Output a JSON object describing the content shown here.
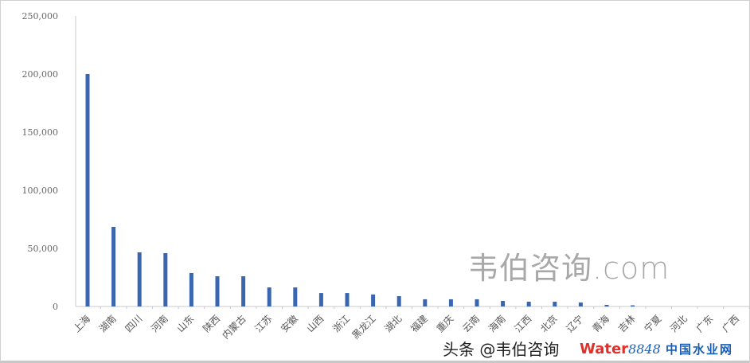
{
  "chart_data": {
    "type": "bar",
    "title": "",
    "xlabel": "",
    "ylabel": "",
    "ylim": [
      0,
      250000
    ],
    "yticks": [
      "0",
      "50,000",
      "100,000",
      "150,000",
      "200,000",
      "250,000"
    ],
    "grid": false,
    "bar_color": "#3a66b0",
    "categories": [
      "上海",
      "湖南",
      "四川",
      "河南",
      "山东",
      "陕西",
      "内蒙古",
      "江苏",
      "安徽",
      "山西",
      "浙江",
      "黑龙江",
      "湖北",
      "福建",
      "重庆",
      "云南",
      "海南",
      "江西",
      "北京",
      "辽宁",
      "青海",
      "吉林",
      "宁夏",
      "河北",
      "广东",
      "广西"
    ],
    "values": [
      200000,
      68500,
      46600,
      45900,
      28800,
      26000,
      26000,
      16400,
      16400,
      11600,
      11600,
      10300,
      8900,
      6200,
      6200,
      6200,
      4800,
      4100,
      4100,
      3400,
      1400,
      1000,
      0,
      0,
      0,
      0
    ]
  },
  "watermarks": {
    "site": "韦伯咨询.com",
    "toutiao": "头条 @韦伯咨询",
    "logo_word": "Water",
    "logo_num": "8848",
    "logo_sub": "中国水业网"
  }
}
